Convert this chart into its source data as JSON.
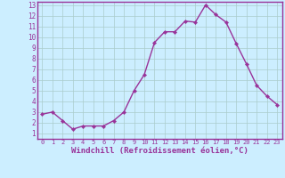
{
  "x": [
    0,
    1,
    2,
    3,
    4,
    5,
    6,
    7,
    8,
    9,
    10,
    11,
    12,
    13,
    14,
    15,
    16,
    17,
    18,
    19,
    20,
    21,
    22,
    23
  ],
  "y": [
    2.8,
    3.0,
    2.2,
    1.4,
    1.7,
    1.7,
    1.7,
    2.2,
    3.0,
    5.0,
    6.5,
    9.5,
    10.5,
    10.5,
    11.5,
    11.4,
    13.0,
    12.1,
    11.4,
    9.4,
    7.5,
    5.5,
    4.5,
    3.7
  ],
  "line_color": "#993399",
  "marker": "D",
  "markersize": 2.2,
  "linewidth": 1.0,
  "xlabel": "Windchill (Refroidissement éolien,°C)",
  "xlabel_fontsize": 6.5,
  "background_color": "#cceeff",
  "grid_color": "#aacccc",
  "label_color": "#993399",
  "xlim": [
    -0.5,
    23.5
  ],
  "ylim": [
    0.5,
    13.3
  ],
  "yticks": [
    1,
    2,
    3,
    4,
    5,
    6,
    7,
    8,
    9,
    10,
    11,
    12,
    13
  ],
  "xticks": [
    0,
    1,
    2,
    3,
    4,
    5,
    6,
    7,
    8,
    9,
    10,
    11,
    12,
    13,
    14,
    15,
    16,
    17,
    18,
    19,
    20,
    21,
    22,
    23
  ],
  "tick_fontsize": 5.5,
  "xtick_fontsize": 5.0
}
